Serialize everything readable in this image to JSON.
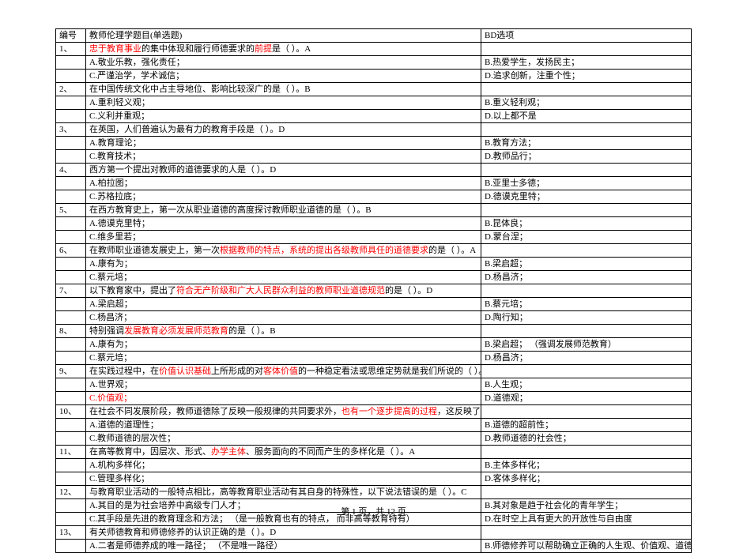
{
  "header": {
    "col_num": "编号",
    "col_a": "教师伦理学题目(单选题)",
    "col_b": "BD选项"
  },
  "rows": [
    {
      "num": "1、",
      "a": [
        {
          "t": "忠于教育事业",
          "c": "red"
        },
        {
          "t": "的集中体现和履行师德要求的"
        },
        {
          "t": "前提",
          "c": "red"
        },
        {
          "t": "是（ ）。A"
        }
      ],
      "b": []
    },
    {
      "num": "",
      "a": [
        {
          "t": "A.敬业乐教，强化责任；"
        }
      ],
      "b": [
        {
          "t": "B.热爱学生，发扬民主；"
        }
      ]
    },
    {
      "num": "",
      "a": [
        {
          "t": "C.严谨治学，学术诚信；"
        }
      ],
      "b": [
        {
          "t": "D.追求创新，注重个性；"
        }
      ]
    },
    {
      "num": "2、",
      "a": [
        {
          "t": "在中国传统文化中占主导地位、影响比较深广的是（ ）。B"
        }
      ],
      "b": []
    },
    {
      "num": "",
      "a": [
        {
          "t": "A.重利轻义观；"
        }
      ],
      "b": [
        {
          "t": "B.重义轻利观；"
        }
      ]
    },
    {
      "num": "",
      "a": [
        {
          "t": "C.义利并重观；"
        }
      ],
      "b": [
        {
          "t": "D.以上都不是"
        }
      ]
    },
    {
      "num": "3、",
      "a": [
        {
          "t": "在英国，人们普遍认为最有力的教育手段是（ ）。D"
        }
      ],
      "b": []
    },
    {
      "num": "",
      "a": [
        {
          "t": "A.教育理论；"
        }
      ],
      "b": [
        {
          "t": "B.教育方法；"
        }
      ]
    },
    {
      "num": "",
      "a": [
        {
          "t": "C.教育技术；"
        }
      ],
      "b": [
        {
          "t": "D.教师品行；"
        }
      ]
    },
    {
      "num": "4、",
      "a": [
        {
          "t": "西方第一个提出对教师的道德要求的人是（ ）。D"
        }
      ],
      "b": []
    },
    {
      "num": "",
      "a": [
        {
          "t": "A.柏拉图；"
        }
      ],
      "b": [
        {
          "t": "B.亚里士多德；"
        }
      ]
    },
    {
      "num": "",
      "a": [
        {
          "t": "C.苏格拉底；"
        }
      ],
      "b": [
        {
          "t": "D.德谟克里特；"
        }
      ]
    },
    {
      "num": "5、",
      "a": [
        {
          "t": "在西方教育史上，第一次从职业道德的高度探讨教师职业道德的是（ ）。B"
        }
      ],
      "b": []
    },
    {
      "num": "",
      "a": [
        {
          "t": "A.德谟克里特；"
        }
      ],
      "b": [
        {
          "t": "B.昆体良；"
        }
      ]
    },
    {
      "num": "",
      "a": [
        {
          "t": "C.维多里若；"
        }
      ],
      "b": [
        {
          "t": "D.蒙台涅；"
        }
      ]
    },
    {
      "num": "6、",
      "a": [
        {
          "t": "在教师职业道德发展史上，第一次"
        },
        {
          "t": "根据教师的特点，系统的提出各级教师具任的道德要求",
          "c": "red"
        },
        {
          "t": "的是（ ）。A"
        }
      ],
      "b": []
    },
    {
      "num": "",
      "a": [
        {
          "t": "A.康有为；"
        }
      ],
      "b": [
        {
          "t": "B.梁启超；"
        }
      ]
    },
    {
      "num": "",
      "a": [
        {
          "t": "C.蔡元培；"
        }
      ],
      "b": [
        {
          "t": "D.杨昌济；"
        }
      ]
    },
    {
      "num": "7、",
      "a": [
        {
          "t": "以下教育家中，提出了"
        },
        {
          "t": "符合无产阶级和广大人民群众利益的教师职业道德规范",
          "c": "red"
        },
        {
          "t": "的是（ ）。D"
        }
      ],
      "b": []
    },
    {
      "num": "",
      "a": [
        {
          "t": "A.梁启超；"
        }
      ],
      "b": [
        {
          "t": "B.蔡元培；"
        }
      ]
    },
    {
      "num": "",
      "a": [
        {
          "t": "C.杨昌济；"
        }
      ],
      "b": [
        {
          "t": "D.陶行知；"
        }
      ]
    },
    {
      "num": "8、",
      "a": [
        {
          "t": "特别强调"
        },
        {
          "t": "发展教育必须发展师范教育",
          "c": "red"
        },
        {
          "t": "的是（ ）。B"
        }
      ],
      "b": []
    },
    {
      "num": "",
      "a": [
        {
          "t": "A.康有为；"
        }
      ],
      "b": [
        {
          "t": "B.梁启超；   （强调发展师范教育）"
        }
      ]
    },
    {
      "num": "",
      "a": [
        {
          "t": "C.蔡元培；"
        }
      ],
      "b": [
        {
          "t": "D.杨昌济；"
        }
      ]
    },
    {
      "num": "9、",
      "a": [
        {
          "t": "在实践过程中，在"
        },
        {
          "t": "价值认识基础",
          "c": "red"
        },
        {
          "t": "上所形成的对"
        },
        {
          "t": "客体价值",
          "c": "red"
        },
        {
          "t": "的一种稳定看法或思维定势就是我们所说的（ ）。C"
        }
      ],
      "b": []
    },
    {
      "num": "",
      "a": [
        {
          "t": "A.世界观；"
        }
      ],
      "b": [
        {
          "t": "B.人生观；"
        }
      ]
    },
    {
      "num": "",
      "a": [
        {
          "t": "C.价值观；",
          "c": "red"
        }
      ],
      "b": [
        {
          "t": "D.道德观；"
        }
      ]
    },
    {
      "num": "10、",
      "a": [
        {
          "t": "在社会不同发展阶段，教师道德除了反映一般规律的共同要求外，"
        },
        {
          "t": "也有一个逐步提高的过程",
          "c": "red"
        },
        {
          "t": "，这反映了（ ）。C"
        }
      ],
      "b": []
    },
    {
      "num": "",
      "a": [
        {
          "t": "A.道德的道理性；"
        }
      ],
      "b": [
        {
          "t": "B.道德的超前性；"
        }
      ]
    },
    {
      "num": "",
      "a": [
        {
          "t": "C.教师道德的层次性；"
        }
      ],
      "b": [
        {
          "t": "D.教师道德的社会性；"
        }
      ]
    },
    {
      "num": "11、",
      "a": [
        {
          "t": "在高等教育中，因层次、形式、"
        },
        {
          "t": "办学主体",
          "c": "red"
        },
        {
          "t": "、服务面向的不同而产生的多样化是（ ）。A"
        }
      ],
      "b": []
    },
    {
      "num": "",
      "a": [
        {
          "t": "A.机构多样化；"
        }
      ],
      "b": [
        {
          "t": "B.主体多样化；"
        }
      ]
    },
    {
      "num": "",
      "a": [
        {
          "t": "C.管理多样化；"
        }
      ],
      "b": [
        {
          "t": "D.客体多样化；"
        }
      ]
    },
    {
      "num": "12、",
      "a": [
        {
          "t": "与教育职业活动的一般特点相比，高等教育职业活动有其自身的特殊性，以下说法错误的是（ ）。C"
        }
      ],
      "b": []
    },
    {
      "num": "",
      "a": [
        {
          "t": "A.其目的是为社会培养中高级专门人才；"
        }
      ],
      "b": [
        {
          "t": "B.其对象是趋于社会化的青年学生；"
        }
      ]
    },
    {
      "num": "",
      "a": [
        {
          "t": "C.其手段是先进的教育理念和方法；     （是一般教育也有的特点，  而非高等教育特有）"
        }
      ],
      "b": [
        {
          "t": "D.在时空上具有更大的开放性与自由度"
        }
      ]
    },
    {
      "num": "13、",
      "a": [
        {
          "t": "有关师德教育和师德修养的认识正确的是（ ）。D"
        }
      ],
      "b": []
    },
    {
      "num": "",
      "a": [
        {
          "t": "A.二者是师德养成的唯一路径；   （不是唯一路径）"
        }
      ],
      "b": [
        {
          "t": "B.师德修养可以帮助确立正确的人生观、价值观、道德观；   （师德教育才可以帮助确"
        }
      ]
    }
  ],
  "footer": "第 1 页，共 12 页"
}
